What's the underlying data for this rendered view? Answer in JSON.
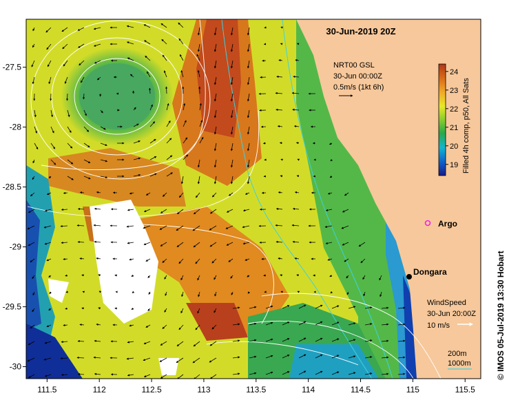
{
  "map": {
    "title": "30-Jun-2019 20Z",
    "x_ticks": [
      "111.5",
      "112",
      "112.5",
      "113",
      "113.5",
      "114",
      "114.5",
      "115",
      "115.5"
    ],
    "y_ticks": [
      "-27.5",
      "-28",
      "-28.5",
      "-29",
      "-29.5",
      "-30"
    ],
    "x_range": [
      111.3,
      115.65
    ],
    "y_range": [
      -27.1,
      -30.1
    ]
  },
  "current_legend": {
    "line1": "NRT00 GSL",
    "line2": "30-Jun 00:00Z",
    "line3": "0.5m/s (1kt 6h)"
  },
  "wind_legend": {
    "line1": "WindSpeed",
    "line2": "30-Jun 20:00Z",
    "line3": "10 m/s"
  },
  "depth_legend": {
    "shallow": "200m",
    "deep": "1000m"
  },
  "colorbar": {
    "label": "Filled 4h comp, p50, All Sats",
    "ticks": [
      "24",
      "23",
      "22",
      "21",
      "20",
      "19"
    ]
  },
  "places": {
    "argo": "Argo",
    "dongara": "Dongara"
  },
  "credit": "© IMOS 05-Jul-2019 13:30 Hobart",
  "colors": {
    "land": "#f7c89b",
    "warm": "#e07b18",
    "hot": "#c0441a",
    "mid": "#cde020",
    "cool": "#2aa84a",
    "cold": "#1030a0",
    "argo": "#ee22ee"
  }
}
